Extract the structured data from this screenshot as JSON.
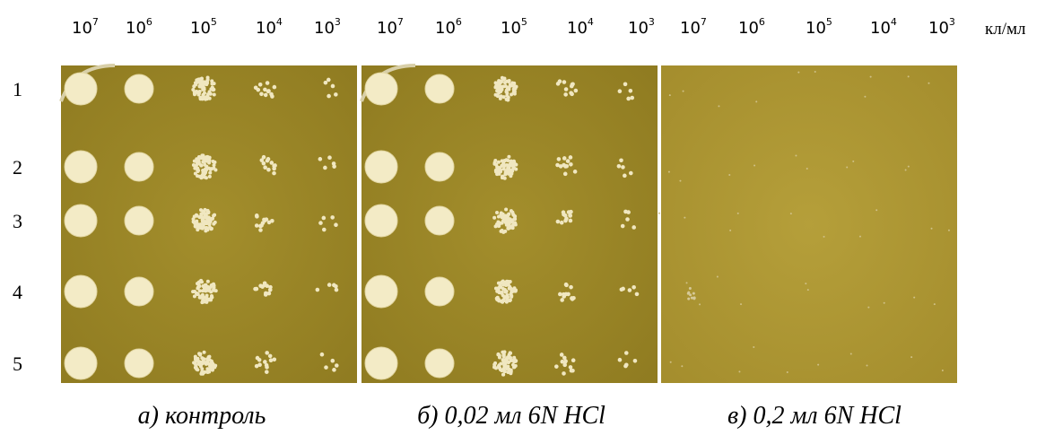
{
  "units": "кл/мл",
  "rows": [
    "1",
    "2",
    "3",
    "4",
    "5"
  ],
  "panels": [
    {
      "caption": "а) контроль",
      "dilutions": [
        {
          "base": "10",
          "exp": "7"
        },
        {
          "base": "10",
          "exp": "6"
        },
        {
          "base": "10",
          "exp": "5"
        },
        {
          "base": "10",
          "exp": "4"
        },
        {
          "base": "10",
          "exp": "3"
        }
      ]
    },
    {
      "caption": "б) 0,02 мл 6N HCl",
      "dilutions": [
        {
          "base": "10",
          "exp": "7"
        },
        {
          "base": "10",
          "exp": "6"
        },
        {
          "base": "10",
          "exp": "5"
        },
        {
          "base": "10",
          "exp": "4"
        },
        {
          "base": "10",
          "exp": "3"
        }
      ]
    },
    {
      "caption": "в) 0,2 мл 6N HCl",
      "dilutions": [
        {
          "base": "10",
          "exp": "7"
        },
        {
          "base": "10",
          "exp": "6"
        },
        {
          "base": "10",
          "exp": "5"
        },
        {
          "base": "10",
          "exp": "4"
        },
        {
          "base": "10",
          "exp": "3"
        }
      ]
    }
  ]
}
